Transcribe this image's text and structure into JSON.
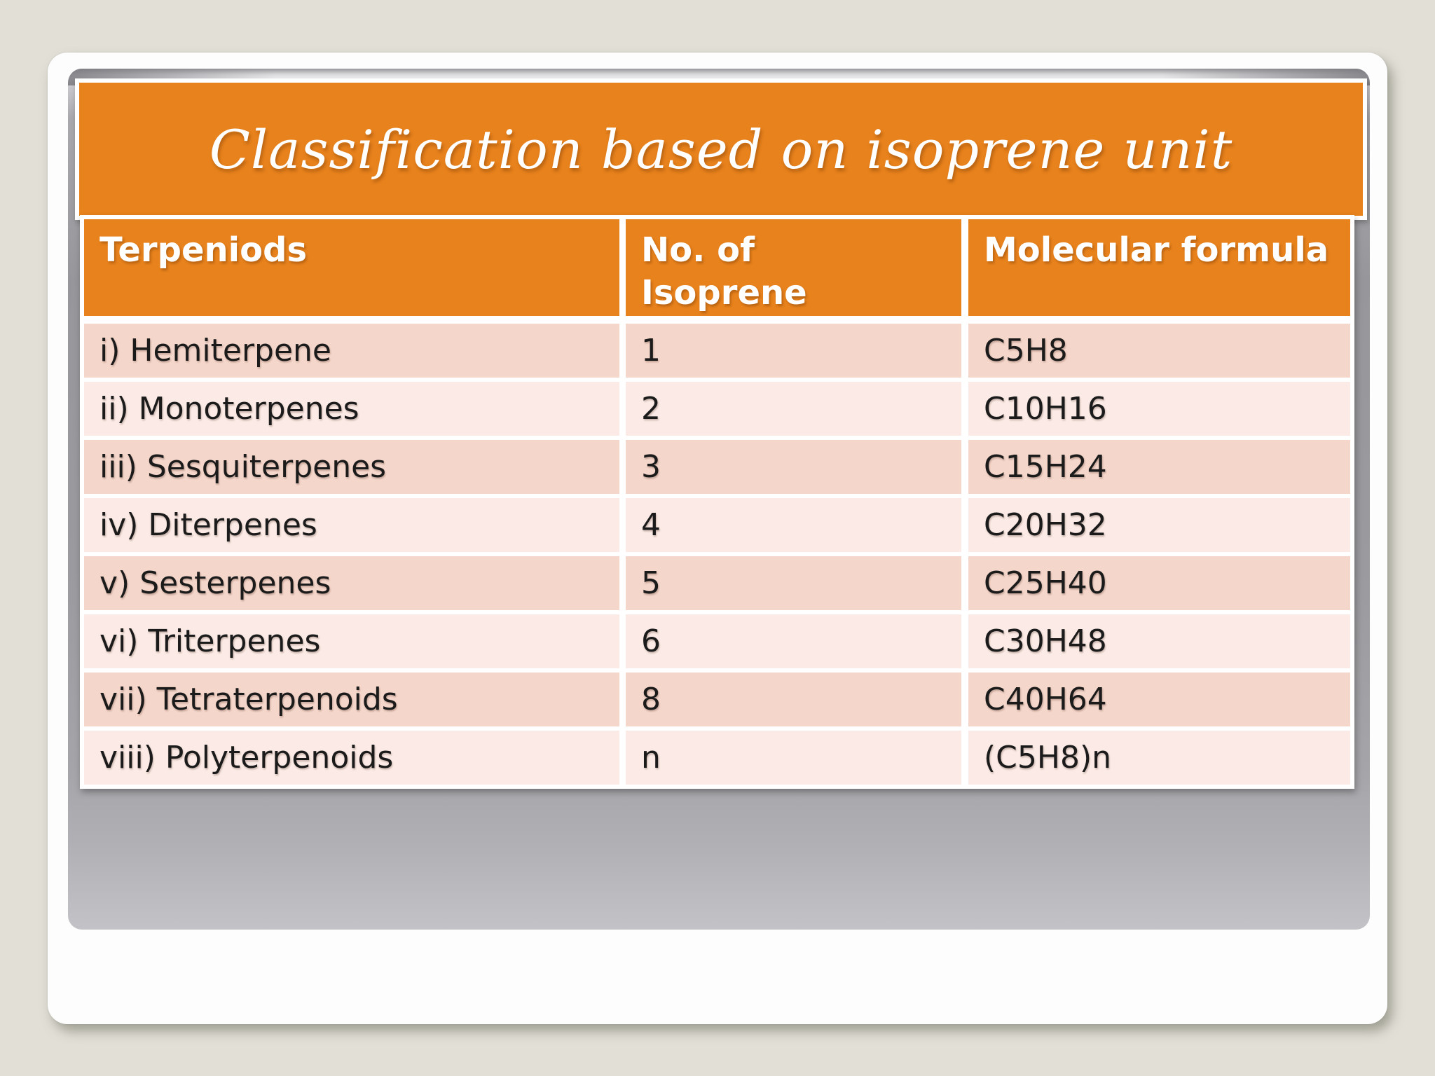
{
  "title_bar": {
    "text": "Classification based on isoprene unit"
  },
  "table": {
    "headers": [
      "Terpeniods",
      "No. of\nIsoprene",
      "Molecular formula"
    ],
    "rows": [
      [
        "i) Hemiterpene",
        "1",
        "C5H8"
      ],
      [
        "ii) Monoterpenes",
        "2",
        "C10H16"
      ],
      [
        "iii) Sesquiterpenes",
        "3",
        "C15H24"
      ],
      [
        "iv) Diterpenes",
        "4",
        "C20H32"
      ],
      [
        "v) Sesterpenes",
        "5",
        "C25H40"
      ],
      [
        "vi) Triterpenes",
        "6",
        "C30H48"
      ],
      [
        "vii) Tetraterpenoids",
        "8",
        "C40H64"
      ],
      [
        "viii) Polyterpenoids",
        "n",
        "(C5H8)n"
      ]
    ]
  },
  "colors": {
    "accent_orange": "#E8821C",
    "row_pink_dark": "#F5D6CA",
    "row_pink_light": "#FBEAE5",
    "panel_gray": "#A0A0A4",
    "page_beige": "#E1DFD6",
    "header_text": "#FFFFFF",
    "body_text": "#1B1B1B"
  }
}
